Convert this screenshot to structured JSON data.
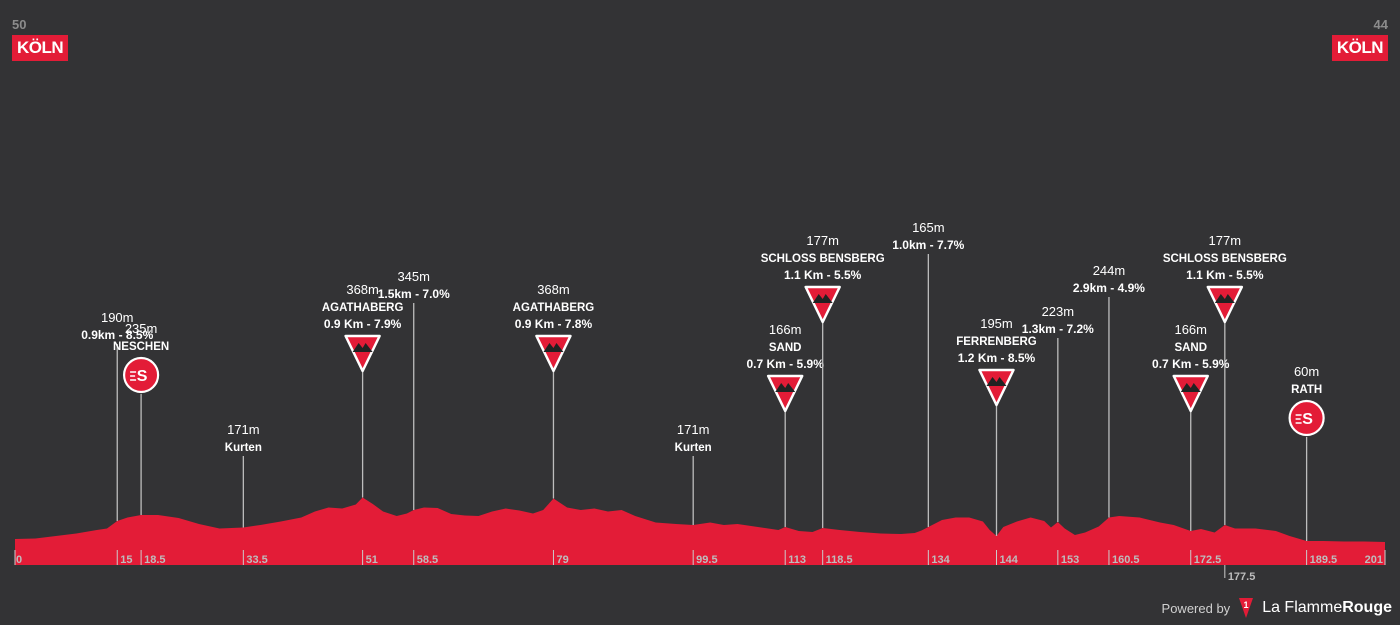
{
  "start": {
    "number": "50",
    "city": "KÖLN"
  },
  "finish": {
    "number": "44",
    "city": "KÖLN"
  },
  "footer": {
    "powered_by": "Powered by",
    "brand_light": "La Flamme",
    "brand_bold": "Rouge",
    "logo_text": "1"
  },
  "colors": {
    "background": "#333335",
    "profile": "#e31c37",
    "badge": "#e31c37",
    "axis": "#bdbdbd"
  },
  "chart_data": {
    "type": "area",
    "xlim": [
      0,
      201
    ],
    "ylim": [
      0,
      400
    ],
    "profile": [
      [
        0,
        52
      ],
      [
        3,
        53
      ],
      [
        6,
        58
      ],
      [
        9,
        63
      ],
      [
        12,
        70
      ],
      [
        13.5,
        73
      ],
      [
        15,
        88
      ],
      [
        16.5,
        95
      ],
      [
        18.5,
        100
      ],
      [
        21,
        100
      ],
      [
        24,
        94
      ],
      [
        27,
        82
      ],
      [
        30,
        73
      ],
      [
        33.5,
        75
      ],
      [
        36,
        80
      ],
      [
        39,
        87
      ],
      [
        42,
        95
      ],
      [
        44,
        107
      ],
      [
        46,
        115
      ],
      [
        48,
        113
      ],
      [
        50,
        121
      ],
      [
        51,
        135
      ],
      [
        52.5,
        122
      ],
      [
        54,
        107
      ],
      [
        56,
        98
      ],
      [
        57.5,
        103
      ],
      [
        58.5,
        110
      ],
      [
        60,
        115
      ],
      [
        62,
        114
      ],
      [
        64,
        102
      ],
      [
        66,
        99
      ],
      [
        68,
        98
      ],
      [
        70,
        107
      ],
      [
        72,
        113
      ],
      [
        74,
        109
      ],
      [
        76,
        103
      ],
      [
        77.5,
        110
      ],
      [
        79,
        133
      ],
      [
        81,
        115
      ],
      [
        83,
        110
      ],
      [
        85,
        113
      ],
      [
        87,
        107
      ],
      [
        89,
        110
      ],
      [
        91,
        98
      ],
      [
        94,
        85
      ],
      [
        97,
        82
      ],
      [
        99.5,
        80
      ],
      [
        102,
        85
      ],
      [
        104,
        80
      ],
      [
        106,
        82
      ],
      [
        108,
        78
      ],
      [
        110,
        74
      ],
      [
        112,
        70
      ],
      [
        113,
        76
      ],
      [
        115,
        68
      ],
      [
        117,
        66
      ],
      [
        118.5,
        74
      ],
      [
        121,
        70
      ],
      [
        124,
        66
      ],
      [
        127,
        63
      ],
      [
        130,
        62
      ],
      [
        132,
        64
      ],
      [
        133,
        69
      ],
      [
        134,
        76
      ],
      [
        136,
        90
      ],
      [
        138,
        95
      ],
      [
        140,
        95
      ],
      [
        142,
        87
      ],
      [
        143,
        70
      ],
      [
        144,
        58
      ],
      [
        145,
        76
      ],
      [
        147,
        87
      ],
      [
        149,
        95
      ],
      [
        151,
        88
      ],
      [
        152,
        75
      ],
      [
        153,
        86
      ],
      [
        154,
        73
      ],
      [
        155.5,
        60
      ],
      [
        157,
        65
      ],
      [
        159,
        77
      ],
      [
        160.5,
        95
      ],
      [
        162,
        98
      ],
      [
        165,
        95
      ],
      [
        168,
        85
      ],
      [
        170,
        80
      ],
      [
        172.5,
        68
      ],
      [
        174,
        72
      ],
      [
        176,
        65
      ],
      [
        177.5,
        80
      ],
      [
        179,
        73
      ],
      [
        182,
        73
      ],
      [
        185,
        68
      ],
      [
        187,
        58
      ],
      [
        189.5,
        48
      ],
      [
        192,
        48
      ],
      [
        195,
        47
      ],
      [
        198,
        47
      ],
      [
        201,
        46
      ]
    ],
    "x_ticks": [
      {
        "km": 0,
        "label": "0"
      },
      {
        "km": 15,
        "label": "15"
      },
      {
        "km": 18.5,
        "label": "18.5"
      },
      {
        "km": 33.5,
        "label": "33.5"
      },
      {
        "km": 51,
        "label": "51"
      },
      {
        "km": 58.5,
        "label": "58.5"
      },
      {
        "km": 79,
        "label": "79"
      },
      {
        "km": 99.5,
        "label": "99.5"
      },
      {
        "km": 113,
        "label": "113"
      },
      {
        "km": 118.5,
        "label": "118.5"
      },
      {
        "km": 134,
        "label": "134"
      },
      {
        "km": 144,
        "label": "144"
      },
      {
        "km": 153,
        "label": "153"
      },
      {
        "km": 160.5,
        "label": "160.5"
      },
      {
        "km": 172.5,
        "label": "172.5"
      },
      {
        "km": 177.5,
        "label": "177.5",
        "below": true
      },
      {
        "km": 189.5,
        "label": "189.5"
      },
      {
        "km": 201,
        "label": "201",
        "end": true
      }
    ],
    "markers": [
      {
        "km": 15,
        "elev": "190m",
        "name": "",
        "detail": "0.9km - 8.5%",
        "icon": "none",
        "top": 344
      },
      {
        "km": 18.5,
        "elev": "235m",
        "name": "NESCHEN",
        "detail": "",
        "icon": "sprint",
        "top": 394
      },
      {
        "km": 33.5,
        "elev": "171m",
        "name": "Kurten",
        "detail": "",
        "icon": "none",
        "top": 456
      },
      {
        "km": 51,
        "elev": "368m",
        "name": "AGATHABERG",
        "detail": "0.9 Km - 7.9%",
        "icon": "kom",
        "top": 372
      },
      {
        "km": 58.5,
        "elev": "345m",
        "name": "",
        "detail": "1.5km - 7.0%",
        "icon": "none",
        "top": 303
      },
      {
        "km": 79,
        "elev": "368m",
        "name": "AGATHABERG",
        "detail": "0.9 Km - 7.8%",
        "icon": "kom",
        "top": 372
      },
      {
        "km": 99.5,
        "elev": "171m",
        "name": "Kurten",
        "detail": "",
        "icon": "none",
        "top": 456
      },
      {
        "km": 113,
        "elev": "166m",
        "name": "SAND",
        "detail": "0.7 Km - 5.9%",
        "icon": "kom",
        "top": 412
      },
      {
        "km": 118.5,
        "elev": "177m",
        "name": "SCHLOSS BENSBERG",
        "detail": "1.1 Km - 5.5%",
        "icon": "kom",
        "top": 323
      },
      {
        "km": 134,
        "elev": "165m",
        "name": "",
        "detail": "1.0km - 7.7%",
        "icon": "none",
        "top": 254
      },
      {
        "km": 144,
        "elev": "195m",
        "name": "FERRENBERG",
        "detail": "1.2 Km - 8.5%",
        "icon": "kom",
        "top": 406
      },
      {
        "km": 153,
        "elev": "223m",
        "name": "",
        "detail": "1.3km - 7.2%",
        "icon": "none",
        "top": 338
      },
      {
        "km": 160.5,
        "elev": "244m",
        "name": "",
        "detail": "2.9km - 4.9%",
        "icon": "none",
        "top": 297
      },
      {
        "km": 172.5,
        "elev": "166m",
        "name": "SAND",
        "detail": "0.7 Km - 5.9%",
        "icon": "kom",
        "top": 412
      },
      {
        "km": 177.5,
        "elev": "177m",
        "name": "SCHLOSS BENSBERG",
        "detail": "1.1 Km - 5.5%",
        "icon": "kom",
        "top": 323
      },
      {
        "km": 189.5,
        "elev": "60m",
        "name": "RATH",
        "detail": "",
        "icon": "sprint",
        "top": 437
      }
    ]
  }
}
